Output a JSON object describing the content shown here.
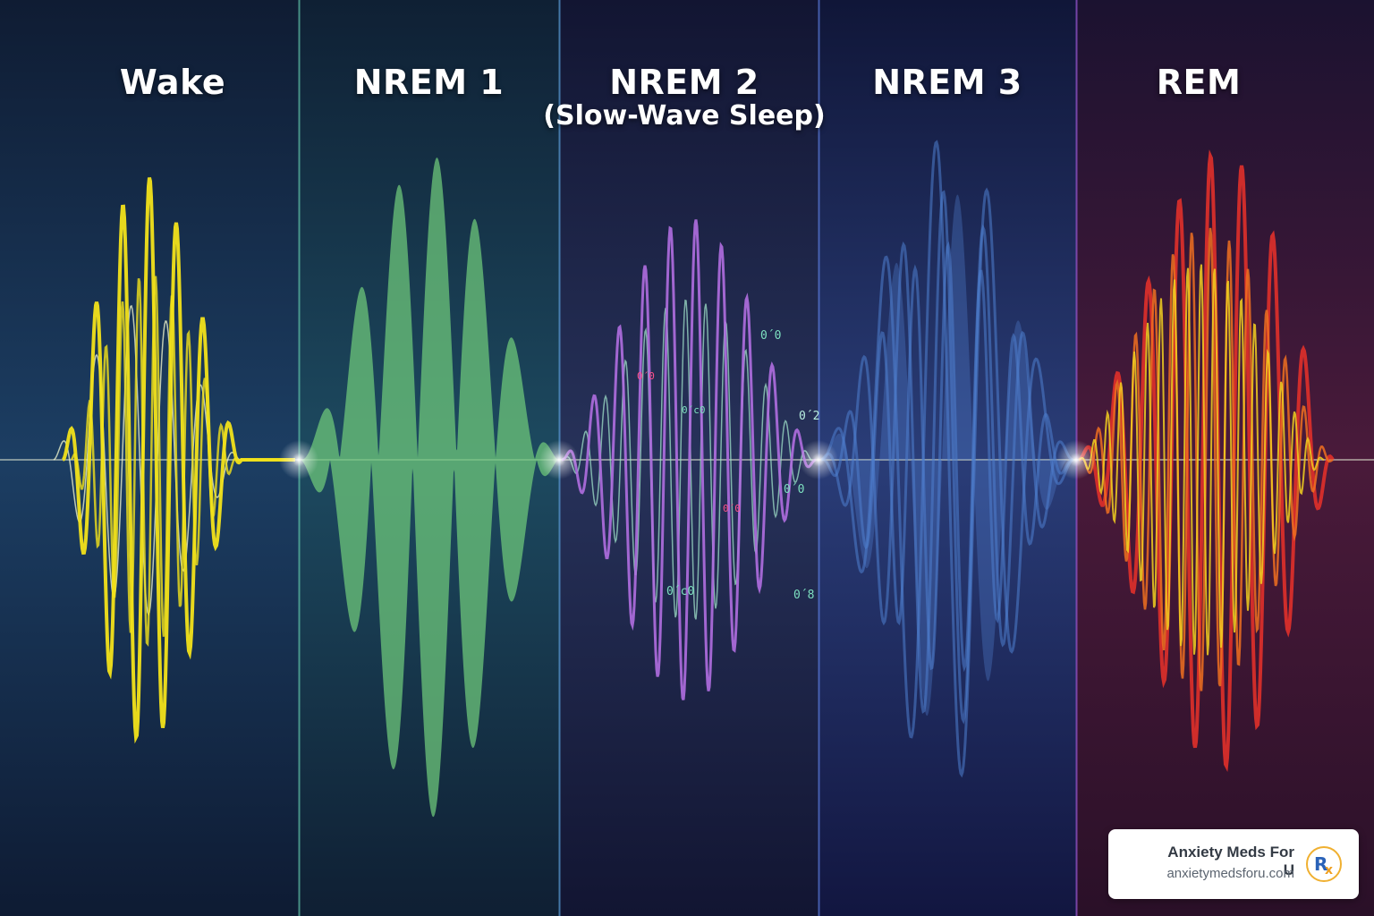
{
  "stages": [
    {
      "title": "Wake",
      "subtitle": "",
      "color": "#f2e21a"
    },
    {
      "title": "NREM 1",
      "subtitle": "",
      "color": "#6cc57a"
    },
    {
      "title": "NREM 2",
      "subtitle": "(Slow-Wave Sleep)",
      "color": "#b06ee0"
    },
    {
      "title": "NREM 3",
      "subtitle": "",
      "color": "#4f7fcf"
    },
    {
      "title": "REM",
      "subtitle": "",
      "color": "#e0302a"
    }
  ],
  "scattered_labels": [
    "0´0",
    "0´c0",
    "0´2",
    "0´0",
    "0´0",
    "0´c0",
    "0´0",
    "0´8"
  ],
  "badge": {
    "name": "Anxiety Meds For U",
    "url": "anxietymedsforu.com",
    "logo_icon": "rx-logo"
  }
}
